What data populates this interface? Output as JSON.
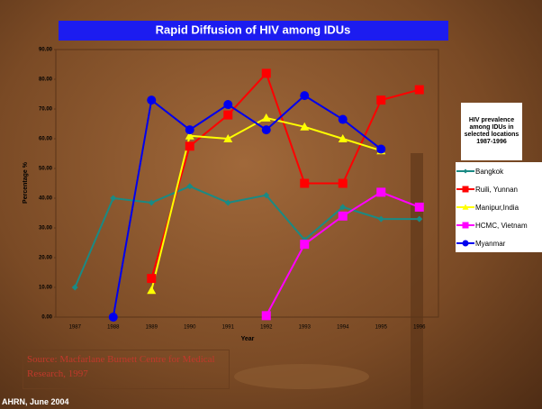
{
  "chart_data": {
    "type": "line",
    "title": "Rapid Diffusion of HIV among IDUs",
    "xlabel": "Year",
    "ylabel": "Percentage %",
    "categories": [
      "1987",
      "1988",
      "1989",
      "1990",
      "1991",
      "1992",
      "1993",
      "1994",
      "1995",
      "1996"
    ],
    "ylim": [
      0,
      90
    ],
    "yticks": [
      {
        "value": 0,
        "label": "0.00"
      },
      {
        "value": 10,
        "label": "10.00"
      },
      {
        "value": 20,
        "label": "20.00"
      },
      {
        "value": 30,
        "label": "30.00"
      },
      {
        "value": 40,
        "label": "40.00"
      },
      {
        "value": 50,
        "label": "50.00"
      },
      {
        "value": 60,
        "label": "60.00"
      },
      {
        "value": 70,
        "label": "70.00"
      },
      {
        "value": 80,
        "label": "80.00"
      },
      {
        "value": 90,
        "label": "90.00"
      }
    ],
    "legend_title": "HIV prevalence among IDUs in selected locations 1987-1996",
    "series": [
      {
        "name": "Bangkok",
        "color": "#1a8a84",
        "marker": "diamond",
        "values": [
          10,
          40,
          38.5,
          44,
          38.5,
          41,
          26,
          37,
          33,
          33
        ]
      },
      {
        "name": "Ruili, Yunnan",
        "color": "#ff0000",
        "marker": "square",
        "values": [
          null,
          null,
          13,
          57.5,
          68,
          82,
          45,
          45,
          73,
          76.5
        ]
      },
      {
        "name": "Manipur,India",
        "color": "#ffff00",
        "marker": "triangle",
        "values": [
          null,
          null,
          9,
          61,
          60,
          67,
          64,
          60,
          56,
          null
        ]
      },
      {
        "name": "HCMC, Vietnam",
        "color": "#ff00ff",
        "marker": "square",
        "values": [
          null,
          null,
          null,
          null,
          null,
          0.5,
          24.5,
          34,
          42,
          37
        ]
      },
      {
        "name": "Myanmar",
        "color": "#0000ee",
        "marker": "circle",
        "values": [
          null,
          0,
          73,
          63,
          71.5,
          63,
          74.5,
          66.5,
          56.5,
          null
        ]
      }
    ]
  },
  "source": "Source: Macfarlane Burnett Centre for Medical Research, 1997",
  "footer": "AHRN, June 2004"
}
